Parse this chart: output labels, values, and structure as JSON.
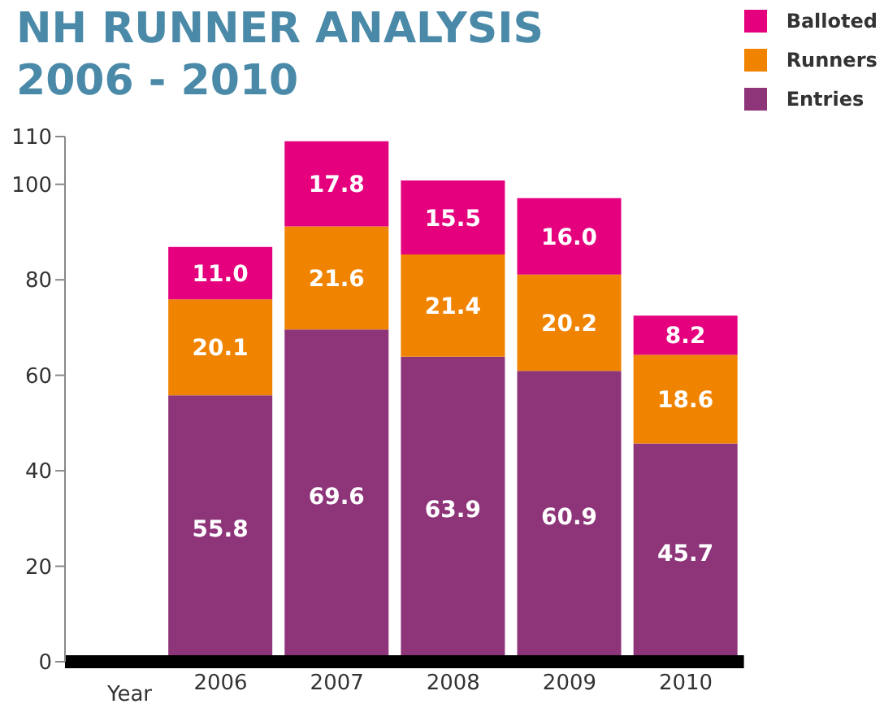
{
  "chart_data": {
    "type": "bar",
    "title": "NH RUNNER ANALYSIS\n2006 - 2010",
    "xlabel": "Year",
    "categories": [
      "2006",
      "2007",
      "2008",
      "2009",
      "2010"
    ],
    "stacked": true,
    "series": [
      {
        "name": "Entries",
        "color": "#8e3479",
        "values": [
          55.8,
          69.6,
          63.9,
          60.9,
          45.7
        ],
        "value_labels": [
          "55.8",
          "69.6",
          "63.9",
          "60.9",
          "45.7"
        ]
      },
      {
        "name": "Runners",
        "color": "#f08300",
        "values": [
          20.1,
          21.6,
          21.4,
          20.2,
          18.6
        ],
        "value_labels": [
          "20.1",
          "21.6",
          "21.4",
          "20.2",
          "18.6"
        ]
      },
      {
        "name": "Balloted",
        "color": "#e5007d",
        "values": [
          11.0,
          17.8,
          15.5,
          16.0,
          8.2
        ],
        "value_labels": [
          "11.0",
          "17.8",
          "15.5",
          "16.0",
          "8.2"
        ]
      }
    ],
    "ylim": [
      0,
      110
    ],
    "yticks": [
      0,
      20,
      40,
      60,
      80,
      100,
      110
    ],
    "grid": false,
    "legend": "top right"
  }
}
